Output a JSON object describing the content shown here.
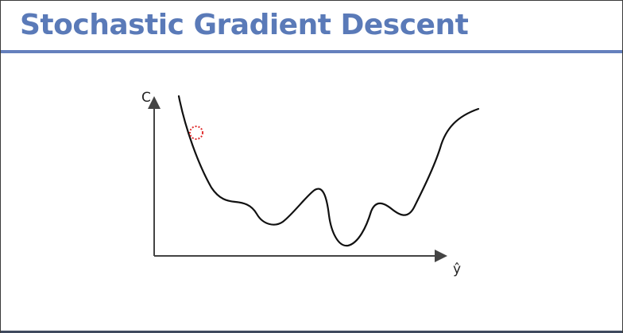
{
  "slide": {
    "title": "Stochastic Gradient Descent"
  },
  "diagram": {
    "y_axis_label": "C",
    "x_axis_label": "ŷ",
    "colors": {
      "title": "#5a7ab8",
      "rule": "#6580bd",
      "curve": "#111111",
      "axis": "#444444",
      "marker": "#e03030"
    }
  }
}
